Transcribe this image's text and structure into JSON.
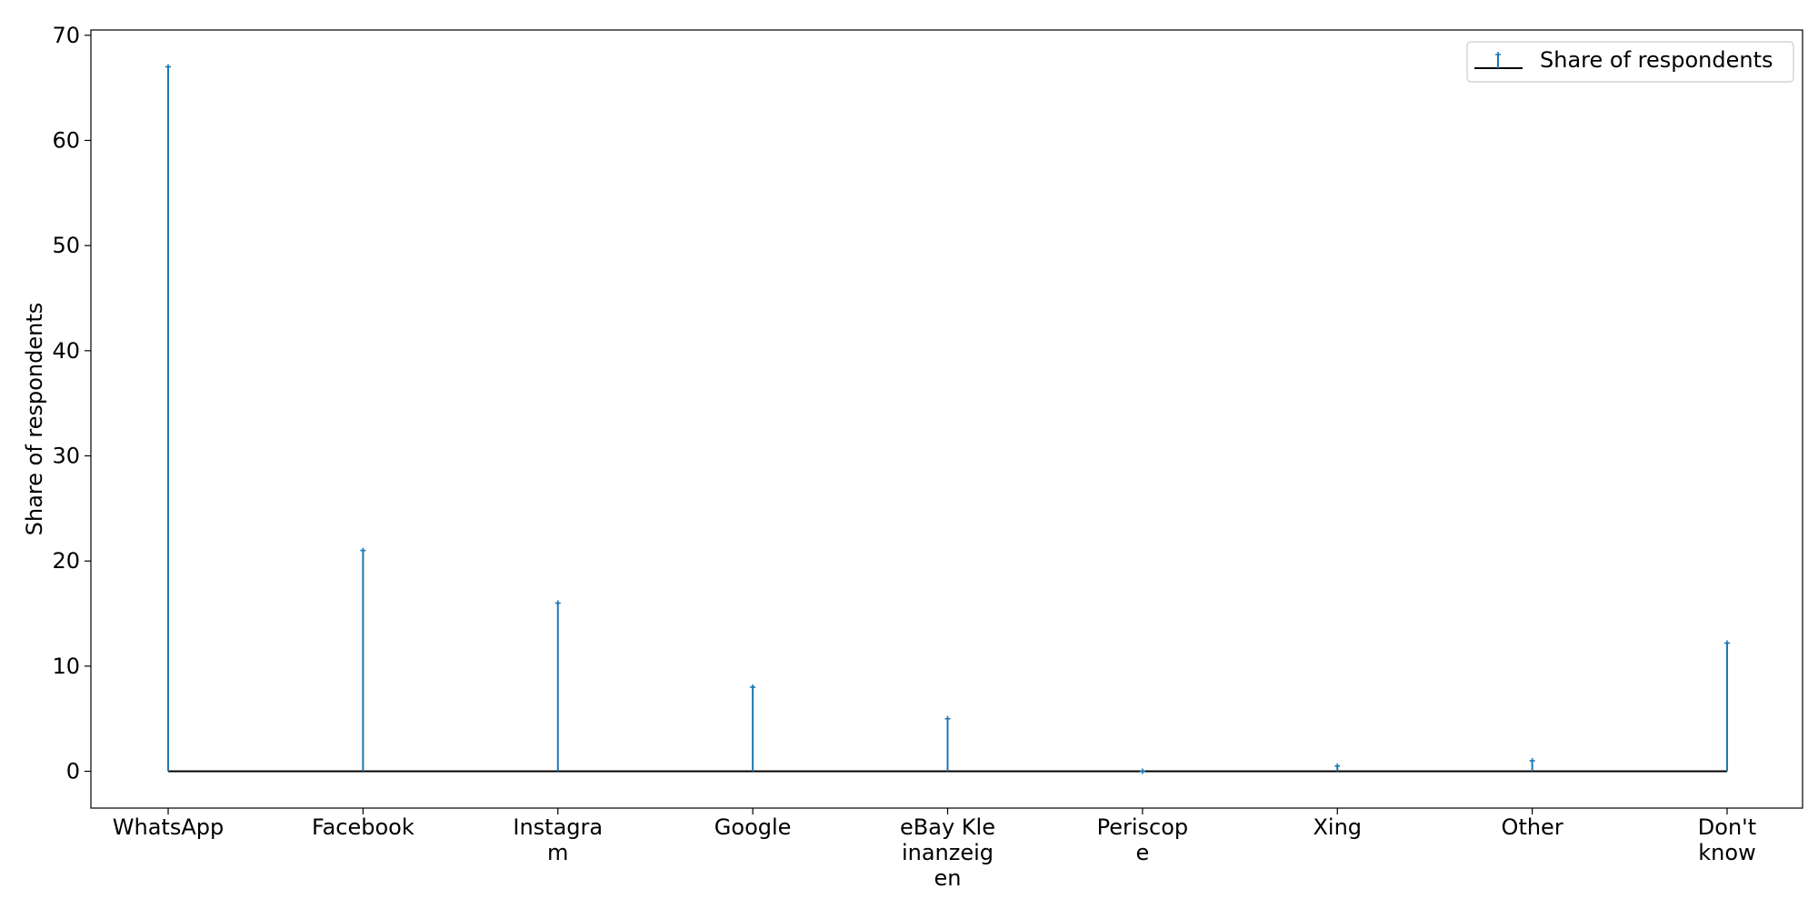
{
  "chart_data": {
    "type": "stem",
    "title": "",
    "xlabel": "",
    "ylabel": "Share of respondents",
    "categories": [
      [
        "WhatsApp"
      ],
      [
        "Facebook"
      ],
      [
        "Instagra",
        "m"
      ],
      [
        "Google"
      ],
      [
        "eBay Kle",
        "inanzeig",
        "en"
      ],
      [
        "Periscop",
        "e"
      ],
      [
        "Xing"
      ],
      [
        "Other"
      ],
      [
        "Don't",
        "know"
      ]
    ],
    "series": [
      {
        "name": "Share of respondents",
        "values": [
          67,
          21,
          16,
          8,
          5,
          0,
          0.5,
          1,
          12.2
        ]
      }
    ],
    "ylim": [
      -3.5,
      70.5
    ],
    "yticks": [
      0,
      10,
      20,
      30,
      40,
      50,
      60,
      70
    ],
    "legend": "top-right",
    "grid": false,
    "colors": {
      "stem": "#1f77b4",
      "baseline": "#000000"
    }
  }
}
